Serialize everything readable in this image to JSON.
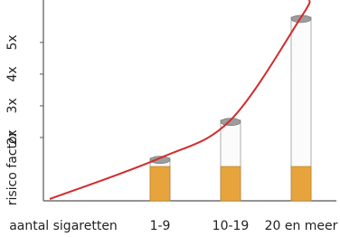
{
  "chart_data": {
    "type": "bar",
    "y_label": "risico factor",
    "x_label": "aantal sigaretten",
    "categories": [
      "1-9",
      "10-19",
      "20 en meer"
    ],
    "values": [
      1.35,
      2.55,
      5.8
    ],
    "color": "#e7a43c",
    "curve_color": "#d22b2b",
    "ylim": [
      0,
      6.34
    ],
    "yticks": [
      {
        "value": 2,
        "label": "2x"
      },
      {
        "value": 3,
        "label": "3x"
      },
      {
        "value": 4,
        "label": "4x"
      },
      {
        "value": 5,
        "label": "5x"
      }
    ]
  }
}
